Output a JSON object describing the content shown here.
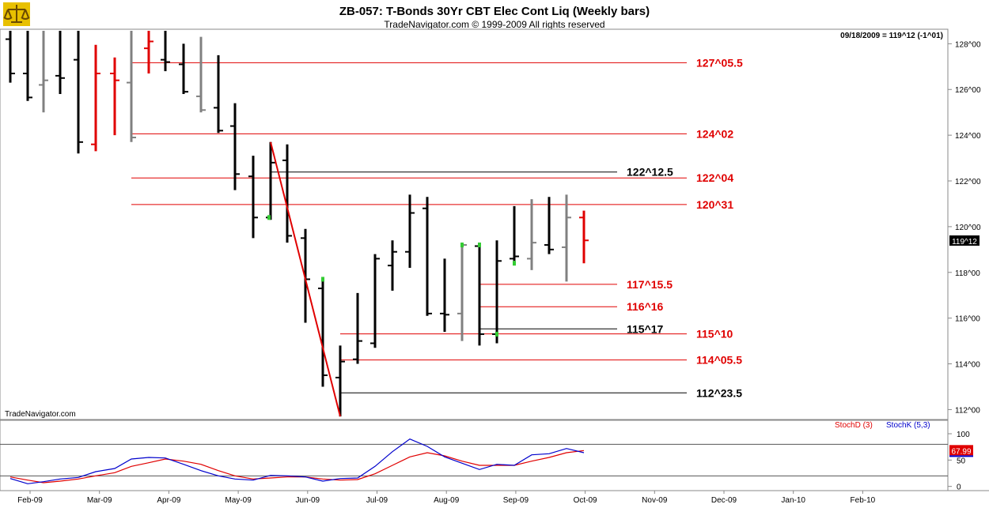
{
  "header": {
    "title": "ZB-057:  T-Bonds 30Yr CBT Elec Cont Liq  (Weekly bars)",
    "subtitle": "TradeNavigator.com © 1999-2009 All rights reserved",
    "quote": "09/18/2009 = 119^12 (-1^01)",
    "watermark": "TradeNavigator.com"
  },
  "colors": {
    "up": "#000000",
    "down": "#e00000",
    "neutral": "#808080",
    "highlight": "#33cc33",
    "stoch_d": "#e00000",
    "stoch_k": "#0000cc"
  },
  "chart_data": [
    {
      "type": "bar",
      "subtype": "ohlc",
      "title": "ZB-057:  T-Bonds 30Yr CBT Elec Cont Liq  (Weekly bars)",
      "y_unit": "points (^ = 32nds)",
      "ylim": [
        111.6,
        128.6
      ],
      "y_ticks": [
        {
          "v": 112,
          "label": "112^00"
        },
        {
          "v": 114,
          "label": "114^00"
        },
        {
          "v": 116,
          "label": "116^00"
        },
        {
          "v": 118,
          "label": "118^00"
        },
        {
          "v": 120,
          "label": "120^00"
        },
        {
          "v": 122,
          "label": "122^00"
        },
        {
          "v": 124,
          "label": "124^00"
        },
        {
          "v": 126,
          "label": "126^00"
        },
        {
          "v": 128,
          "label": "128^00"
        }
      ],
      "x_ticks": [
        "Feb-09",
        "Mar-09",
        "Apr-09",
        "May-09",
        "Jun-09",
        "Jul-09",
        "Aug-09",
        "Sep-09",
        "Oct-09",
        "Nov-09",
        "Dec-09",
        "Jan-10",
        "Feb-10"
      ],
      "price_tag": "119^12",
      "price_tag_value": 119.375,
      "bars": [
        {
          "x": 13,
          "o": 128.2,
          "h": 129.0,
          "l": 126.3,
          "c": 126.7,
          "color": "black"
        },
        {
          "x": 35,
          "o": 126.7,
          "h": 128.6,
          "l": 125.5,
          "c": 125.65,
          "color": "black"
        },
        {
          "x": 55,
          "o": 126.2,
          "h": 128.6,
          "l": 125.0,
          "c": 126.4,
          "color": "gray"
        },
        {
          "x": 76,
          "o": 126.6,
          "h": 128.6,
          "l": 125.8,
          "c": 126.5,
          "color": "black"
        },
        {
          "x": 99,
          "o": 127.3,
          "h": 128.6,
          "l": 123.2,
          "c": 123.7,
          "color": "black"
        },
        {
          "x": 121,
          "o": 123.6,
          "h": 127.95,
          "l": 123.3,
          "c": 126.7,
          "color": "red"
        },
        {
          "x": 145,
          "o": 126.7,
          "h": 127.4,
          "l": 124.0,
          "c": 126.4,
          "color": "red"
        },
        {
          "x": 166,
          "o": 126.3,
          "h": 128.6,
          "l": 123.7,
          "c": 123.9,
          "color": "gray"
        },
        {
          "x": 188,
          "o": 127.8,
          "h": 128.6,
          "l": 126.7,
          "c": 128.1,
          "color": "red"
        },
        {
          "x": 209,
          "o": 127.3,
          "h": 128.6,
          "l": 126.8,
          "c": 127.2,
          "color": "black"
        },
        {
          "x": 232,
          "o": 127.1,
          "h": 128.0,
          "l": 125.8,
          "c": 125.9,
          "color": "black"
        },
        {
          "x": 254,
          "o": 125.7,
          "h": 128.3,
          "l": 125.0,
          "c": 125.1,
          "color": "gray"
        },
        {
          "x": 276,
          "o": 125.2,
          "h": 127.5,
          "l": 124.1,
          "c": 124.2,
          "color": "black"
        },
        {
          "x": 297,
          "o": 124.4,
          "h": 125.4,
          "l": 121.6,
          "c": 122.3,
          "color": "black"
        },
        {
          "x": 320,
          "o": 122.2,
          "h": 123.1,
          "l": 119.5,
          "c": 120.4,
          "color": "black"
        },
        {
          "x": 342,
          "o": 120.4,
          "h": 123.7,
          "l": 120.3,
          "c": 122.8,
          "color": "black"
        },
        {
          "x": 363,
          "o": 122.9,
          "h": 123.6,
          "l": 119.3,
          "c": 119.6,
          "color": "black"
        },
        {
          "x": 386,
          "o": 119.5,
          "h": 119.9,
          "l": 115.8,
          "c": 117.7,
          "color": "black"
        },
        {
          "x": 408,
          "o": 117.3,
          "h": 117.7,
          "l": 113.0,
          "c": 113.5,
          "color": "black"
        },
        {
          "x": 430,
          "o": 113.4,
          "h": 114.8,
          "l": 111.7,
          "c": 114.1,
          "color": "black"
        },
        {
          "x": 452,
          "o": 114.2,
          "h": 117.1,
          "l": 114.0,
          "c": 115.0,
          "color": "black"
        },
        {
          "x": 474,
          "o": 114.9,
          "h": 118.8,
          "l": 114.7,
          "c": 118.6,
          "color": "black"
        },
        {
          "x": 496,
          "o": 118.3,
          "h": 119.4,
          "l": 117.2,
          "c": 118.9,
          "color": "black"
        },
        {
          "x": 518,
          "o": 118.9,
          "h": 121.4,
          "l": 118.2,
          "c": 120.6,
          "color": "black"
        },
        {
          "x": 540,
          "o": 120.8,
          "h": 121.3,
          "l": 116.1,
          "c": 116.2,
          "color": "black"
        },
        {
          "x": 562,
          "o": 116.2,
          "h": 118.6,
          "l": 115.4,
          "c": 116.15,
          "color": "black"
        },
        {
          "x": 584,
          "o": 116.2,
          "h": 119.3,
          "l": 115.0,
          "c": 119.2,
          "color": "gray"
        },
        {
          "x": 606,
          "o": 119.15,
          "h": 119.3,
          "l": 114.8,
          "c": 115.3,
          "color": "black"
        },
        {
          "x": 628,
          "o": 115.3,
          "h": 119.4,
          "l": 114.9,
          "c": 118.5,
          "color": "black"
        },
        {
          "x": 650,
          "o": 118.6,
          "h": 120.9,
          "l": 118.5,
          "c": 118.7,
          "color": "black"
        },
        {
          "x": 672,
          "o": 118.6,
          "h": 121.2,
          "l": 118.1,
          "c": 119.3,
          "color": "gray"
        },
        {
          "x": 694,
          "o": 119.2,
          "h": 121.3,
          "l": 118.8,
          "c": 119.0,
          "color": "black"
        },
        {
          "x": 716,
          "o": 119.1,
          "h": 121.4,
          "l": 117.6,
          "c": 120.4,
          "color": "gray"
        },
        {
          "x": 738,
          "o": 120.4,
          "h": 120.7,
          "l": 118.4,
          "c": 119.4,
          "color": "red"
        }
      ],
      "highlight_marks": [
        {
          "x": 340,
          "v": 120.4
        },
        {
          "x": 408,
          "v": 117.7
        },
        {
          "x": 584,
          "v": 119.2
        },
        {
          "x": 606,
          "v": 119.2
        },
        {
          "x": 628,
          "v": 115.3
        },
        {
          "x": 650,
          "v": 118.4
        }
      ],
      "trendline": {
        "x1": 342,
        "v1": 123.7,
        "x2": 430,
        "v2": 111.7,
        "color": "#e00000"
      },
      "levels": [
        {
          "label": "127^05.5",
          "value": 127.17,
          "x1": 166,
          "x2": 868,
          "label_x": 880,
          "color": "#e00000"
        },
        {
          "label": "124^02",
          "value": 124.06,
          "x1": 166,
          "x2": 868,
          "label_x": 880,
          "color": "#e00000"
        },
        {
          "label": "122^12.5",
          "value": 122.39,
          "x1": 342,
          "x2": 780,
          "label_x": 792,
          "color": "#000000"
        },
        {
          "label": "122^04",
          "value": 122.13,
          "x1": 166,
          "x2": 868,
          "label_x": 880,
          "color": "#e00000"
        },
        {
          "label": "120^31",
          "value": 120.97,
          "x1": 166,
          "x2": 868,
          "label_x": 880,
          "color": "#e00000"
        },
        {
          "label": "117^15.5",
          "value": 117.48,
          "x1": 606,
          "x2": 780,
          "label_x": 792,
          "color": "#e00000"
        },
        {
          "label": "116^16",
          "value": 116.5,
          "x1": 606,
          "x2": 780,
          "label_x": 792,
          "color": "#e00000"
        },
        {
          "label": "115^17",
          "value": 115.53,
          "x1": 606,
          "x2": 780,
          "label_x": 792,
          "color": "#000000"
        },
        {
          "label": "115^10",
          "value": 115.31,
          "x1": 430,
          "x2": 868,
          "label_x": 880,
          "color": "#e00000"
        },
        {
          "label": "114^05.5",
          "value": 114.17,
          "x1": 430,
          "x2": 868,
          "label_x": 880,
          "color": "#e00000"
        },
        {
          "label": "112^23.5",
          "value": 112.73,
          "x1": 430,
          "x2": 868,
          "label_x": 880,
          "color": "#000000"
        }
      ]
    },
    {
      "type": "line",
      "title": "Stochastic",
      "ylim": [
        -5,
        112
      ],
      "y_ticks": [
        {
          "v": 100,
          "label": "100"
        },
        {
          "v": 50,
          "label": "50"
        },
        {
          "v": 0,
          "label": "0"
        }
      ],
      "ref_lines": [
        80,
        20
      ],
      "legend": [
        "StochD (3)",
        "StochK (5,3)"
      ],
      "value_tag": "67.99",
      "value_tag_v": 67.99,
      "series": [
        {
          "name": "StochD (3)",
          "color": "#e00000",
          "points": [
            [
              13,
              18
            ],
            [
              35,
              12
            ],
            [
              55,
              7
            ],
            [
              76,
              10
            ],
            [
              99,
              14
            ],
            [
              121,
              20
            ],
            [
              145,
              26
            ],
            [
              166,
              38
            ],
            [
              188,
              45
            ],
            [
              209,
              52
            ],
            [
              232,
              48
            ],
            [
              254,
              42
            ],
            [
              276,
              30
            ],
            [
              297,
              20
            ],
            [
              320,
              14
            ],
            [
              342,
              16
            ],
            [
              363,
              18
            ],
            [
              386,
              18
            ],
            [
              408,
              14
            ],
            [
              430,
              12
            ],
            [
              452,
              13
            ],
            [
              474,
              24
            ],
            [
              496,
              40
            ],
            [
              518,
              56
            ],
            [
              540,
              64
            ],
            [
              562,
              58
            ],
            [
              584,
              48
            ],
            [
              606,
              40
            ],
            [
              628,
              40
            ],
            [
              650,
              40
            ],
            [
              672,
              48
            ],
            [
              694,
              55
            ],
            [
              716,
              64
            ],
            [
              738,
              68
            ]
          ]
        },
        {
          "name": "StochK (5,3)",
          "color": "#0000cc",
          "points": [
            [
              13,
              15
            ],
            [
              35,
              5
            ],
            [
              55,
              9
            ],
            [
              76,
              14
            ],
            [
              99,
              17
            ],
            [
              121,
              28
            ],
            [
              145,
              34
            ],
            [
              166,
              52
            ],
            [
              188,
              55
            ],
            [
              209,
              54
            ],
            [
              232,
              42
            ],
            [
              254,
              30
            ],
            [
              276,
              20
            ],
            [
              297,
              14
            ],
            [
              320,
              12
            ],
            [
              342,
              21
            ],
            [
              363,
              20
            ],
            [
              386,
              18
            ],
            [
              408,
              10
            ],
            [
              430,
              15
            ],
            [
              452,
              16
            ],
            [
              474,
              38
            ],
            [
              496,
              66
            ],
            [
              518,
              90
            ],
            [
              540,
              76
            ],
            [
              562,
              56
            ],
            [
              584,
              44
            ],
            [
              606,
              32
            ],
            [
              628,
              42
            ],
            [
              650,
              40
            ],
            [
              672,
              60
            ],
            [
              694,
              62
            ],
            [
              716,
              72
            ],
            [
              738,
              64
            ]
          ]
        }
      ]
    }
  ]
}
